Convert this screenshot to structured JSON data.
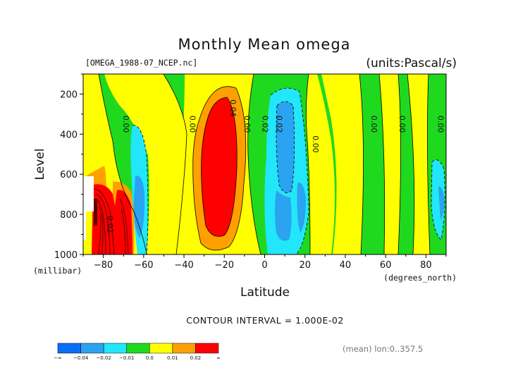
{
  "chart_data": {
    "type": "heatmap",
    "title": "Monthly Mean omega",
    "source_file": "[OMEGA_1988-07_NCEP.nc]",
    "units": "(units:Pascal/s)",
    "xlabel": "Latitude",
    "x_unit_label": "(degrees_north)",
    "ylabel": "Level",
    "y_unit_label": "(millibar)",
    "xlim": [
      -90,
      90
    ],
    "ylim": [
      1000,
      100
    ],
    "x_ticks": [
      -80,
      -60,
      -40,
      -20,
      0,
      20,
      40,
      60,
      80
    ],
    "x_tick_labels": [
      "-80",
      "-60",
      "-40",
      "-20",
      "0",
      "20",
      "40",
      "60",
      "80"
    ],
    "y_ticks": [
      200,
      400,
      600,
      800,
      1000
    ],
    "y_tick_labels": [
      "200",
      "400",
      "600",
      "800",
      "1000"
    ],
    "contour_interval": "CONTOUR INTERVAL = 1.000E-02",
    "mean_note": "(mean) lon:0..357.5",
    "contour_labels": [
      {
        "text": "0.00",
        "lat": -70,
        "lev": 350
      },
      {
        "text": "0.00",
        "lat": -37,
        "lev": 350
      },
      {
        "text": "0.04",
        "lat": -17,
        "lev": 270
      },
      {
        "text": "0.00",
        "lat": -10,
        "lev": 350
      },
      {
        "text": "0.02",
        "lat": -1,
        "lev": 350
      },
      {
        "text": "0.02",
        "lat": 6,
        "lev": 350
      },
      {
        "text": "0.00",
        "lat": 24,
        "lev": 450
      },
      {
        "text": "0.00",
        "lat": 53,
        "lev": 350
      },
      {
        "text": "0.00",
        "lat": 67,
        "lev": 350
      },
      {
        "text": "0.00",
        "lat": 86,
        "lev": 350
      },
      {
        "text": "0.02",
        "lat": -78,
        "lev": 850
      }
    ],
    "colorbar": {
      "colors": [
        "#0a6ef5",
        "#2aa3f0",
        "#22e6fa",
        "#1fd91f",
        "#ffff00",
        "#ffa000",
        "#ff0000"
      ],
      "boundary_labels": [
        "-∞",
        "-0.04",
        "-0.02",
        "-0.01",
        "0.0",
        "0.01",
        "0.02",
        "∞"
      ]
    },
    "field_summary": {
      "levels": "contour interval 0.01 Pa/s",
      "features": [
        {
          "description": "strong ascent band",
          "lat_range": [
            -28,
            -10
          ],
          "lev_range": [
            150,
            950
          ],
          "max_value": 0.04
        },
        {
          "description": "descending cores near Antarctica",
          "lat_range": [
            -85,
            -65
          ],
          "lev_range": [
            600,
            1000
          ],
          "max_value": 0.04
        },
        {
          "description": "ascent (negative) band",
          "lat_range": [
            0,
            20
          ],
          "lev_range": [
            160,
            960
          ],
          "min_value": -0.02
        },
        {
          "description": "negative cell",
          "lat_range": [
            -64,
            -56
          ],
          "lev_range": [
            600,
            900
          ],
          "min_value": -0.02
        }
      ]
    }
  }
}
